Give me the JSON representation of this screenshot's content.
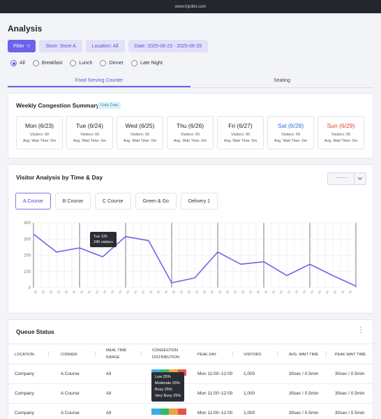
{
  "browser": {
    "url": "www.tripillet.com"
  },
  "page": {
    "title": "Analysis"
  },
  "filters": {
    "filter_button": "Filter",
    "store": "Store: Store A",
    "location": "Location: All",
    "date": "Date: 2025-06-23 - 2025-06-29"
  },
  "meal_times": [
    {
      "label": "All",
      "selected": true
    },
    {
      "label": "Breakfast",
      "selected": false
    },
    {
      "label": "Lunch",
      "selected": false
    },
    {
      "label": "Dinner",
      "selected": false
    },
    {
      "label": "Late Night",
      "selected": false
    }
  ],
  "main_tabs": [
    {
      "label": "Food Serving Counter",
      "active": true
    },
    {
      "label": "Seating",
      "active": false
    }
  ],
  "weekly": {
    "title": "Weekly Congestion Summary",
    "badge": "Daily Data",
    "days": [
      {
        "name": "Mon (6/23)",
        "visitors": "Visitors: 00",
        "wait": "Avg. Wait Time: 0m"
      },
      {
        "name": "Tue (6/24)",
        "visitors": "Visitors: 00",
        "wait": "Avg. Wait Time: 0m"
      },
      {
        "name": "Wed (6/25)",
        "visitors": "Visitors: 00",
        "wait": "Avg. Wait Time: 0m"
      },
      {
        "name": "Thu (6/26)",
        "visitors": "Visitors: 00",
        "wait": "Avg. Wait Time: 0m"
      },
      {
        "name": "Fri (6/27)",
        "visitors": "Visitors: 00",
        "wait": "Avg. Wait Time: 0m"
      },
      {
        "name": "Sat (6/28)",
        "visitors": "Visitors: 00",
        "wait": "Avg. Wait Time: 0m"
      },
      {
        "name": "Sun (6/29)",
        "visitors": "Visitors: 00",
        "wait": "Avg. Wait Time: 0m"
      }
    ]
  },
  "visitor": {
    "title": "Visitor Analysis by Time & Day",
    "dropdown_value": "--------",
    "courses": [
      {
        "label": "A Course",
        "active": true
      },
      {
        "label": "B Course",
        "active": false
      },
      {
        "label": "C Course",
        "active": false
      },
      {
        "label": "Green & Go",
        "active": false
      },
      {
        "label": "Delivery 1",
        "active": false
      }
    ],
    "tooltip": {
      "line1": "Tue 12h",
      "line2": "245 visitors"
    }
  },
  "chart_data": {
    "type": "line",
    "color": "#6c63ea",
    "ylim": [
      0,
      400
    ],
    "yticks": [
      "0",
      "100",
      "200",
      "300",
      "400"
    ],
    "x_tick_label": "0h",
    "x_tick_count": 42,
    "points": [
      {
        "x": 0,
        "y": 330
      },
      {
        "x": 3,
        "y": 220
      },
      {
        "x": 6,
        "y": 245
      },
      {
        "x": 9,
        "y": 190
      },
      {
        "x": 12,
        "y": 315
      },
      {
        "x": 15,
        "y": 290
      },
      {
        "x": 18,
        "y": 30
      },
      {
        "x": 21,
        "y": 60
      },
      {
        "x": 24,
        "y": 220
      },
      {
        "x": 27,
        "y": 145
      },
      {
        "x": 30,
        "y": 160
      },
      {
        "x": 33,
        "y": 75
      },
      {
        "x": 36,
        "y": 145
      },
      {
        "x": 39,
        "y": 75
      },
      {
        "x": 42,
        "y": 10
      }
    ]
  },
  "queue": {
    "title": "Queue Status",
    "headers": [
      "LOCATION",
      "CONNER",
      "MEAL TIME RANGE",
      "CONGESTION DISTRIBUTION",
      "PEAK DAY",
      "VISITORS",
      "AVG. WAIT TIME",
      "PEAK WAIT TIME"
    ],
    "rows": [
      {
        "location": "Company",
        "conner": "A Course",
        "meal": "All",
        "peak_day": "Mon 11:00~12:00",
        "visitors": "1,000",
        "avg": "30sec / 0.5min",
        "peak": "30sec / 0.5min"
      },
      {
        "location": "Company",
        "conner": "A Course",
        "meal": "All",
        "peak_day": "Mon 11:00~12:00",
        "visitors": "1,000",
        "avg": "30sec / 0.5min",
        "peak": "30sec / 0.5min"
      },
      {
        "location": "Company",
        "conner": "A Course",
        "meal": "All",
        "peak_day": "Mon 11:00~12:00",
        "visitors": "1,000",
        "avg": "30sec / 0.5min",
        "peak": "30sec / 0.5min"
      }
    ],
    "distribution_colors": [
      "#3aaee0",
      "#33b86a",
      "#f0a33b",
      "#e8534a"
    ],
    "tooltip": [
      "Low 25%",
      "Moderate 25%",
      "Busy 25%",
      "Very Busy 25%"
    ]
  }
}
